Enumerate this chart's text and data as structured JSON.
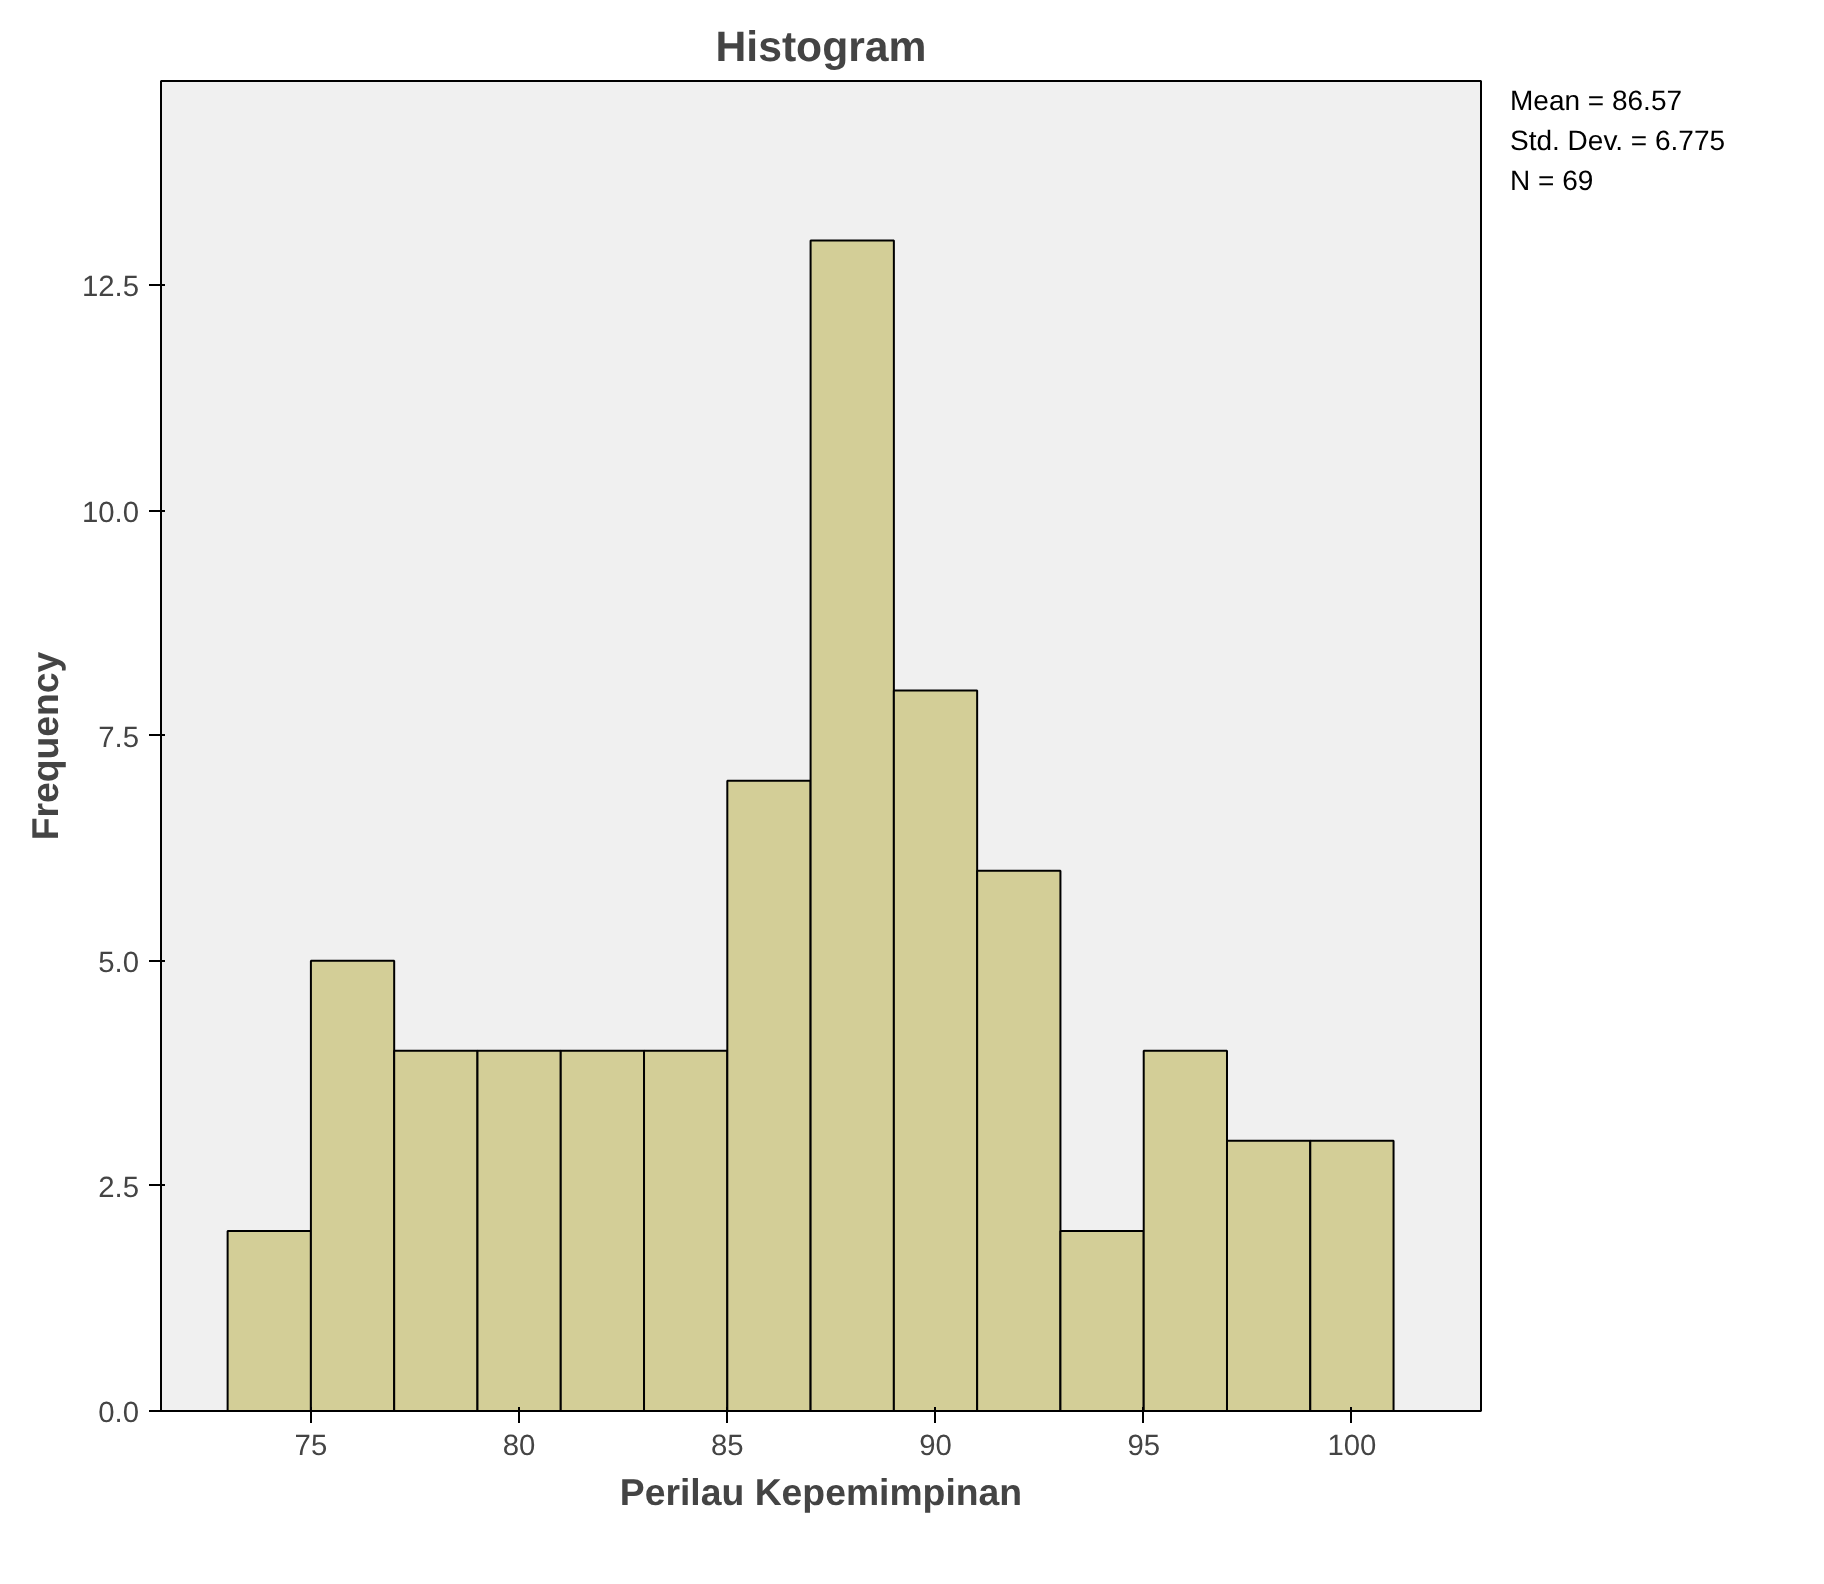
{
  "chart_data": {
    "type": "histogram",
    "title": "Histogram",
    "xlabel": "Perilau Kepemimpinan",
    "ylabel": "Frequency",
    "bins": [
      73,
      75,
      77,
      79,
      81,
      83,
      85,
      87,
      89,
      91,
      93,
      95,
      97,
      99,
      101
    ],
    "values": [
      2,
      5,
      4,
      4,
      4,
      4,
      7,
      13,
      8,
      6,
      2,
      4,
      3,
      3
    ],
    "color": "#d3ce97",
    "xlim": [
      71.4,
      103.1
    ],
    "ylim": [
      0,
      14.77
    ],
    "xticks": [
      75,
      80,
      85,
      90,
      95,
      100
    ],
    "yticks": [
      {
        "value": 0,
        "label": "0.0"
      },
      {
        "value": 2.5,
        "label": "2.5"
      },
      {
        "value": 5,
        "label": "5.0"
      },
      {
        "value": 7.5,
        "label": "7.5"
      },
      {
        "value": 10,
        "label": "10.0"
      },
      {
        "value": 12.5,
        "label": "12.5"
      }
    ],
    "grid": false,
    "annotations": [
      "Mean = 86.57",
      "Std. Dev. = 6.775",
      "N = 69"
    ]
  }
}
